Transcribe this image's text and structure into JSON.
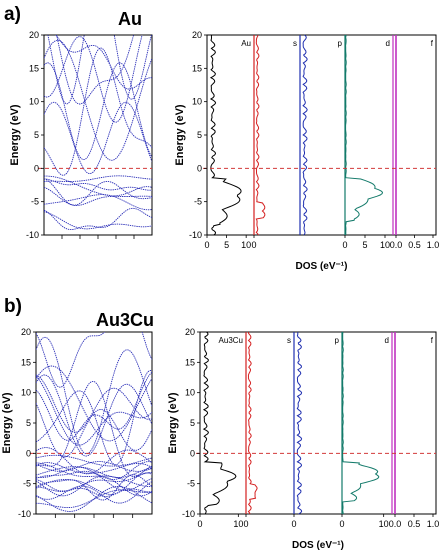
{
  "panels": {
    "a": {
      "letter": "a)",
      "material": "Au"
    },
    "b": {
      "letter": "b)",
      "material": "Au3Cu"
    }
  },
  "colors": {
    "bands": "#2b2fb8",
    "total": "#000000",
    "s": "#d42020",
    "p": "#1f2fb0",
    "d": "#137a6a",
    "f": "#c030c0",
    "fermi": "#d23a3a"
  },
  "chart_data": [
    {
      "type": "line",
      "name": "Au band structure",
      "ylabel": "Energy (eV)",
      "ylim": [
        -10,
        20
      ],
      "yticks": [
        -10,
        -5,
        0,
        5,
        10,
        15,
        20
      ],
      "ytick_labels": [
        "-10",
        "-5",
        "0",
        "5",
        "10",
        "15",
        "20"
      ],
      "fermi_level": 0
    },
    {
      "type": "line",
      "name": "Au DOS",
      "ylabel": "Energy (eV)",
      "xlabel": "DOS (eV⁻¹)",
      "ylim": [
        -10,
        20
      ],
      "yticks": [
        -10,
        -5,
        0,
        5,
        10,
        15,
        20
      ],
      "ytick_labels": [
        "-10",
        "-5",
        "0",
        "5",
        "10",
        "15",
        "20"
      ],
      "fermi_level": 0,
      "subpanels": [
        {
          "label": "Au",
          "xticks": [
            0,
            5,
            10
          ],
          "xtick_labels": [
            "0",
            "5",
            "10"
          ]
        },
        {
          "label": "s",
          "xticks": [
            0
          ],
          "xtick_labels": [
            "0"
          ]
        },
        {
          "label": "p",
          "xticks": [],
          "xtick_labels": []
        },
        {
          "label": "d",
          "xticks": [
            0,
            5,
            10
          ],
          "xtick_labels": [
            "0",
            "5",
            "10"
          ]
        },
        {
          "label": "f",
          "xticks": [
            0.0,
            0.5,
            1.0
          ],
          "xtick_labels": [
            "0.0",
            "0.5",
            "1.0"
          ]
        }
      ]
    },
    {
      "type": "line",
      "name": "Au3Cu band structure",
      "ylabel": "Energy (eV)",
      "ylim": [
        -10,
        20
      ],
      "yticks": [
        -10,
        -5,
        0,
        5,
        10,
        15,
        20
      ],
      "ytick_labels": [
        "-10",
        "-5",
        "0",
        "5",
        "10",
        "15",
        "20"
      ],
      "fermi_level": 0
    },
    {
      "type": "line",
      "name": "Au3Cu DOS",
      "ylabel": "Energy (eV)",
      "xlabel": "DOS (eV⁻¹)",
      "ylim": [
        -10,
        20
      ],
      "yticks": [
        -10,
        -5,
        0,
        5,
        10,
        15,
        20
      ],
      "ytick_labels": [
        "-10",
        "-5",
        "0",
        "5",
        "10",
        "15",
        "20"
      ],
      "fermi_level": 0,
      "subpanels": [
        {
          "label": "Au3Cu",
          "xticks": [
            0,
            10
          ],
          "xtick_labels": [
            "0",
            "10"
          ]
        },
        {
          "label": "s",
          "xticks": [
            0
          ],
          "xtick_labels": [
            "0"
          ]
        },
        {
          "label": "p",
          "xticks": [
            0
          ],
          "xtick_labels": [
            "0"
          ]
        },
        {
          "label": "d",
          "xticks": [
            0,
            10
          ],
          "xtick_labels": [
            "0",
            "10"
          ]
        },
        {
          "label": "f",
          "xticks": [
            0.0,
            0.5,
            1.0
          ],
          "xtick_labels": [
            "0.0",
            "0.5",
            "1.0"
          ]
        }
      ]
    }
  ]
}
